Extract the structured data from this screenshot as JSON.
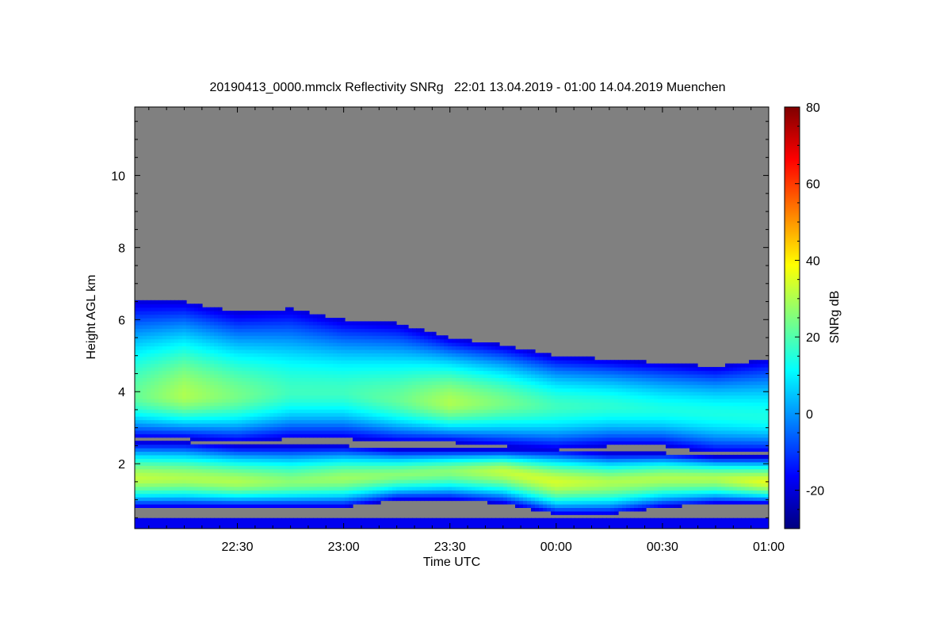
{
  "chart_data": {
    "type": "heatmap",
    "title": "20190413_0000.mmclx Reflectivity SNRg   22:01 13.04.2019 - 01:00 14.04.2019 Muenchen",
    "xlabel": "Time UTC",
    "ylabel": "Height AGL km",
    "colorbar_label": "SNRg dB",
    "xlim_hours": [
      22.017,
      25.0
    ],
    "ylim_km": [
      0.2,
      11.9
    ],
    "clim": [
      -30,
      80
    ],
    "x_ticks": [
      {
        "value": 22.5,
        "label": "22:30"
      },
      {
        "value": 23.0,
        "label": "23:00"
      },
      {
        "value": 23.5,
        "label": "23:30"
      },
      {
        "value": 24.0,
        "label": "00:00"
      },
      {
        "value": 24.5,
        "label": "00:30"
      },
      {
        "value": 25.0,
        "label": "01:00"
      }
    ],
    "y_ticks": [
      {
        "value": 2,
        "label": "2"
      },
      {
        "value": 4,
        "label": "4"
      },
      {
        "value": 6,
        "label": "6"
      },
      {
        "value": 8,
        "label": "8"
      },
      {
        "value": 10,
        "label": "10"
      }
    ],
    "colorbar_ticks": [
      {
        "value": -20,
        "label": "-20"
      },
      {
        "value": 0,
        "label": "0"
      },
      {
        "value": 20,
        "label": "20"
      },
      {
        "value": 40,
        "label": "40"
      },
      {
        "value": 60,
        "label": "60"
      },
      {
        "value": 80,
        "label": "80"
      }
    ],
    "no_signal_color": "#808080",
    "colormap": [
      "#00007f",
      "#0000ff",
      "#007fff",
      "#00ffff",
      "#7fff7f",
      "#ffff00",
      "#ff7f00",
      "#ff0000",
      "#7f0000"
    ],
    "upper_layer": {
      "time_hours": [
        22.017,
        22.25,
        22.5,
        22.75,
        23.0,
        23.25,
        23.5,
        23.75,
        24.0,
        24.25,
        24.5,
        24.75,
        25.0
      ],
      "top_km": [
        6.5,
        6.5,
        6.2,
        6.3,
        6.0,
        5.9,
        5.5,
        5.3,
        5.0,
        4.9,
        4.8,
        4.7,
        4.9
      ],
      "base_km": [
        2.7,
        2.7,
        2.6,
        2.7,
        2.7,
        2.6,
        2.6,
        2.5,
        2.4,
        2.5,
        2.5,
        2.3,
        2.3
      ],
      "peak_height_km": [
        3.9,
        3.9,
        3.9,
        4.0,
        4.0,
        3.8,
        3.7,
        3.7,
        3.6,
        3.6,
        3.5,
        3.4,
        3.3
      ],
      "peak_snr_db": [
        22,
        30,
        24,
        18,
        18,
        22,
        30,
        24,
        18,
        16,
        14,
        14,
        14
      ]
    },
    "lower_layer": {
      "time_hours": [
        22.017,
        22.25,
        22.5,
        22.75,
        23.0,
        23.25,
        23.5,
        23.75,
        24.0,
        24.25,
        24.5,
        24.75,
        25.0
      ],
      "top_km": [
        2.6,
        2.6,
        2.5,
        2.5,
        2.5,
        2.4,
        2.4,
        2.4,
        2.4,
        2.3,
        2.3,
        2.2,
        2.2
      ],
      "base_km": [
        0.8,
        0.8,
        0.8,
        0.8,
        0.8,
        1.0,
        1.0,
        0.9,
        0.6,
        0.6,
        0.8,
        0.9,
        0.9
      ],
      "peak_height_km": [
        1.6,
        1.6,
        1.5,
        1.5,
        1.6,
        1.7,
        1.8,
        1.8,
        1.5,
        1.5,
        1.6,
        1.6,
        1.5
      ],
      "peak_snr_db": [
        32,
        30,
        30,
        26,
        28,
        26,
        26,
        32,
        34,
        30,
        30,
        30,
        36
      ]
    },
    "surface_clutter_top_km": 0.45
  }
}
